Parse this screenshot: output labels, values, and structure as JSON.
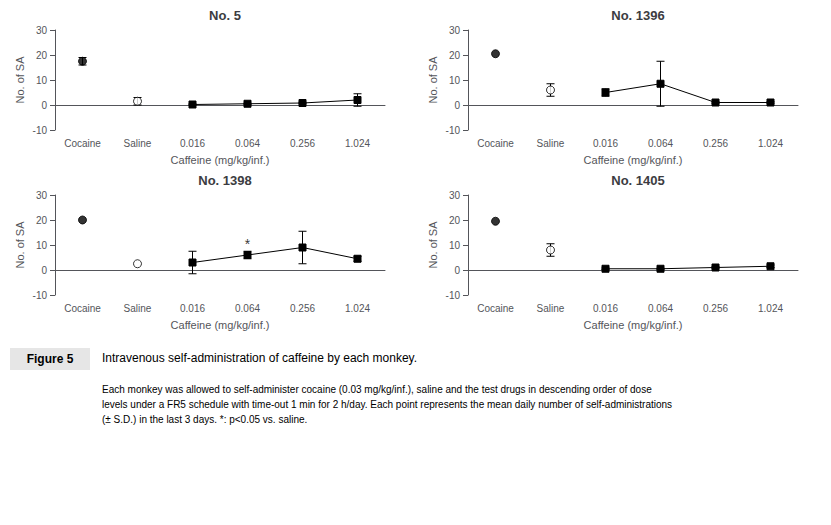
{
  "chart_data": [
    {
      "type": "line",
      "title": "No. 5",
      "categories": [
        "Cocaine",
        "Saline",
        "0.016",
        "0.064",
        "0.256",
        "1.024"
      ],
      "xlabel": "Caffeine (mg/kg/inf.)",
      "ylabel": "No. of SA",
      "ylim": [
        -10,
        30
      ],
      "yticks": [
        -10,
        0,
        10,
        20,
        30
      ],
      "grid": false,
      "series": [
        {
          "type": "scatter",
          "marker": "circle",
          "color": "#000000",
          "values": [
            17.5,
            null,
            null,
            null,
            null,
            null
          ],
          "errors": [
            1.5,
            null,
            null,
            null,
            null,
            null
          ]
        },
        {
          "type": "scatter",
          "marker": "open circle",
          "color": "#000000",
          "values": [
            null,
            1.5,
            null,
            null,
            null,
            null
          ],
          "errors": [
            null,
            1.5,
            null,
            null,
            null,
            null
          ]
        },
        {
          "type": "line",
          "marker": "square",
          "color": "#000000",
          "values": [
            null,
            null,
            0.2,
            0.5,
            0.8,
            2.0
          ],
          "errors": [
            null,
            null,
            0.2,
            0.2,
            0.3,
            2.5
          ]
        }
      ]
    },
    {
      "type": "line",
      "title": "No. 1396",
      "categories": [
        "Cocaine",
        "Saline",
        "0.016",
        "0.064",
        "0.256",
        "1.024"
      ],
      "xlabel": "Caffeine (mg/kg/inf.)",
      "ylabel": "No. of SA",
      "ylim": [
        -10,
        30
      ],
      "yticks": [
        -10,
        0,
        10,
        20,
        30
      ],
      "grid": false,
      "series": [
        {
          "type": "scatter",
          "marker": "circle",
          "color": "#000000",
          "values": [
            20.5,
            null,
            null,
            null,
            null,
            null
          ],
          "errors": [
            0,
            null,
            null,
            null,
            null,
            null
          ]
        },
        {
          "type": "scatter",
          "marker": "open circle",
          "color": "#000000",
          "values": [
            null,
            6.0,
            null,
            null,
            null,
            null
          ],
          "errors": [
            null,
            2.5,
            null,
            null,
            null,
            null
          ]
        },
        {
          "type": "line",
          "marker": "square",
          "color": "#000000",
          "values": [
            null,
            null,
            5.0,
            8.5,
            1.0,
            1.0
          ],
          "errors": [
            null,
            null,
            1.5,
            9.0,
            0.3,
            0.3
          ]
        }
      ]
    },
    {
      "type": "line",
      "title": "No. 1398",
      "categories": [
        "Cocaine",
        "Saline",
        "0.016",
        "0.064",
        "0.256",
        "1.024"
      ],
      "xlabel": "Caffeine (mg/kg/inf.)",
      "ylabel": "No. of SA",
      "ylim": [
        -10,
        30
      ],
      "yticks": [
        -10,
        0,
        10,
        20,
        30
      ],
      "grid": false,
      "series": [
        {
          "type": "scatter",
          "marker": "circle",
          "color": "#000000",
          "values": [
            20.0,
            null,
            null,
            null,
            null,
            null
          ],
          "errors": [
            0,
            null,
            null,
            null,
            null,
            null
          ]
        },
        {
          "type": "scatter",
          "marker": "open circle",
          "color": "#000000",
          "values": [
            null,
            2.5,
            null,
            null,
            null,
            null
          ],
          "errors": [
            null,
            0,
            null,
            null,
            null,
            null
          ]
        },
        {
          "type": "line",
          "marker": "square",
          "color": "#000000",
          "values": [
            null,
            null,
            3.0,
            6.0,
            9.0,
            4.5
          ],
          "errors": [
            null,
            null,
            4.5,
            1.5,
            6.5,
            1.0
          ]
        }
      ],
      "annotations": [
        {
          "text": "*",
          "x": "0.064",
          "y": 7.8
        }
      ]
    },
    {
      "type": "line",
      "title": "No. 1405",
      "categories": [
        "Cocaine",
        "Saline",
        "0.016",
        "0.064",
        "0.256",
        "1.024"
      ],
      "xlabel": "Caffeine (mg/kg/inf.)",
      "ylabel": "No. of SA",
      "ylim": [
        -10,
        30
      ],
      "yticks": [
        -10,
        0,
        10,
        20,
        30
      ],
      "grid": false,
      "series": [
        {
          "type": "scatter",
          "marker": "circle",
          "color": "#000000",
          "values": [
            19.5,
            null,
            null,
            null,
            null,
            null
          ],
          "errors": [
            0,
            null,
            null,
            null,
            null,
            null
          ]
        },
        {
          "type": "scatter",
          "marker": "open circle",
          "color": "#000000",
          "values": [
            null,
            8.0,
            null,
            null,
            null,
            null
          ],
          "errors": [
            null,
            2.5,
            null,
            null,
            null,
            null
          ]
        },
        {
          "type": "line",
          "marker": "square",
          "color": "#000000",
          "values": [
            null,
            null,
            0.5,
            0.5,
            1.0,
            1.5
          ],
          "errors": [
            null,
            null,
            0.3,
            0.2,
            0.3,
            0.5
          ]
        }
      ]
    }
  ],
  "caption": {
    "title": "Figure 5",
    "text": "Intravenous self-administration of caffeine by each monkey.",
    "body": "Each monkey was allowed to self-administer cocaine (0.03 mg/kg/inf.), saline and the test drugs in descending order of dose\nlevels under a FR5 schedule with time-out 1 min for 2 h/day. Each point represents the mean daily number of self-administrations\n(± S.D.) in the last 3 days. *: p<0.05 vs. saline."
  }
}
